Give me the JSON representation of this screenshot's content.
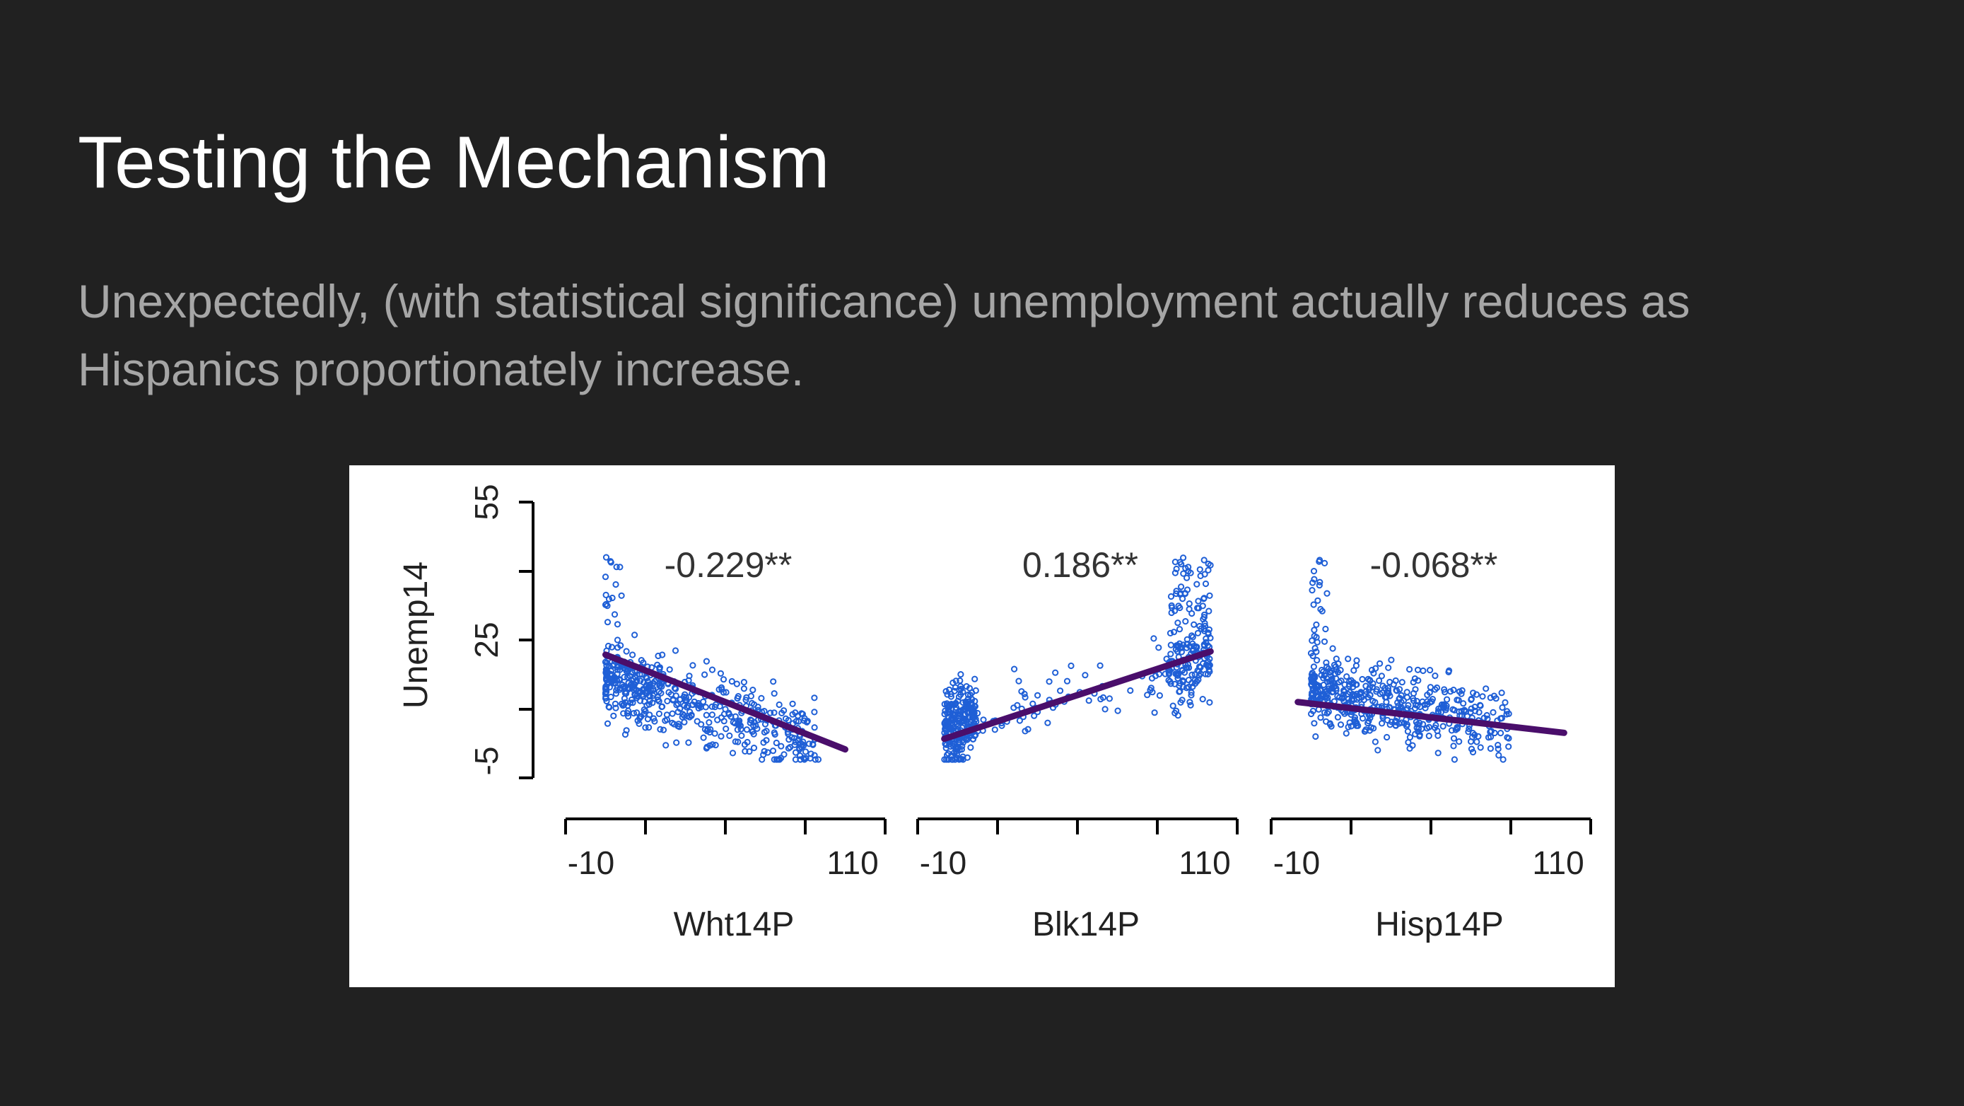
{
  "slide": {
    "title": "Testing the Mechanism",
    "body": "Unexpectedly, (with statistical significance) unemployment actually reduces as Hispanics proportionately increase."
  },
  "colors": {
    "background": "#212121",
    "title": "#ffffff",
    "body": "#a6a6a6",
    "points": "#1f5fd6",
    "fit_line": "#4a0e6b"
  },
  "chart_data": {
    "type": "scatter",
    "ylabel": "Unemp14",
    "y_ticks": [
      "55",
      "25",
      "-5"
    ],
    "ylim": [
      -5,
      55
    ],
    "xlim": [
      -10,
      110
    ],
    "x_tick_labels": [
      "-10",
      "110"
    ],
    "grid": false,
    "panels": [
      {
        "xlabel": "Wht14P",
        "coefficient": "-0.229**",
        "fit": {
          "x": [
            5,
            95
          ],
          "y": [
            21.8,
            1.2
          ]
        },
        "point_cloud": {
          "x_range": [
            5,
            85
          ],
          "y_at_min_x": 16,
          "y_at_max_x": 3,
          "y_spread": 14,
          "dense_left_max_y": 43
        }
      },
      {
        "xlabel": "Blk14P",
        "coefficient": "0.186**",
        "fit": {
          "x": [
            0,
            100
          ],
          "y": [
            3.5,
            22.5
          ]
        },
        "point_cloud": {
          "x_range": [
            0,
            100
          ],
          "y_at_min_x": 6,
          "y_at_max_x": 20,
          "y_spread": 14,
          "dense_right_max_y": 43
        }
      },
      {
        "xlabel": "Hisp14P",
        "coefficient": "-0.068**",
        "fit": {
          "x": [
            0,
            100
          ],
          "y": [
            11.5,
            4.8
          ]
        },
        "point_cloud": {
          "x_range": [
            5,
            80
          ],
          "y_at_min_x": 14,
          "y_at_max_x": 7,
          "y_spread": 14,
          "dense_left_max_y": 43
        }
      }
    ]
  }
}
